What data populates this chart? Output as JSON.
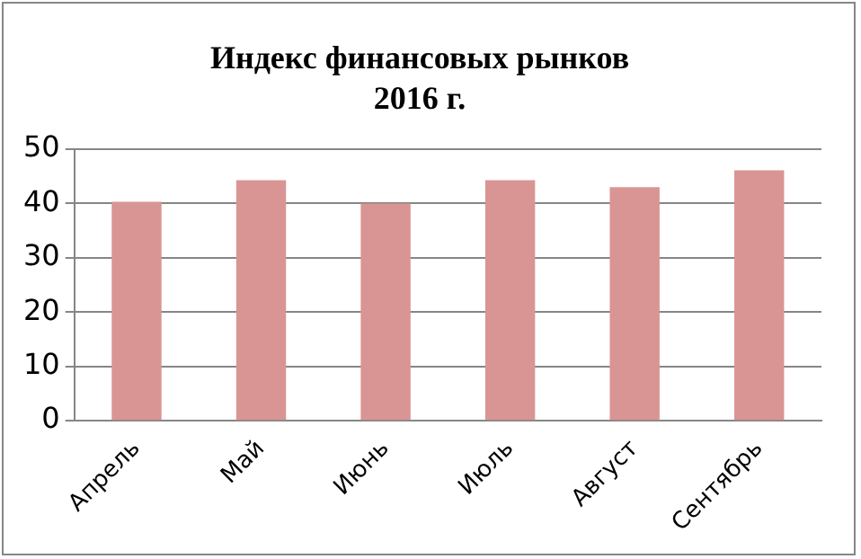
{
  "chart_data": {
    "type": "bar",
    "title": "Индекс финансовых рынков\n2016 г.",
    "categories": [
      "Апрель",
      "Май",
      "Июнь",
      "Июль",
      "Август",
      "Сентябрь"
    ],
    "values": [
      40.3,
      44.3,
      40,
      44.3,
      43,
      46.1
    ],
    "color": "#d99594",
    "ylim": [
      0,
      50
    ],
    "yticks": [
      0,
      10,
      20,
      30,
      40,
      50
    ],
    "grid": "y",
    "legend": false
  }
}
